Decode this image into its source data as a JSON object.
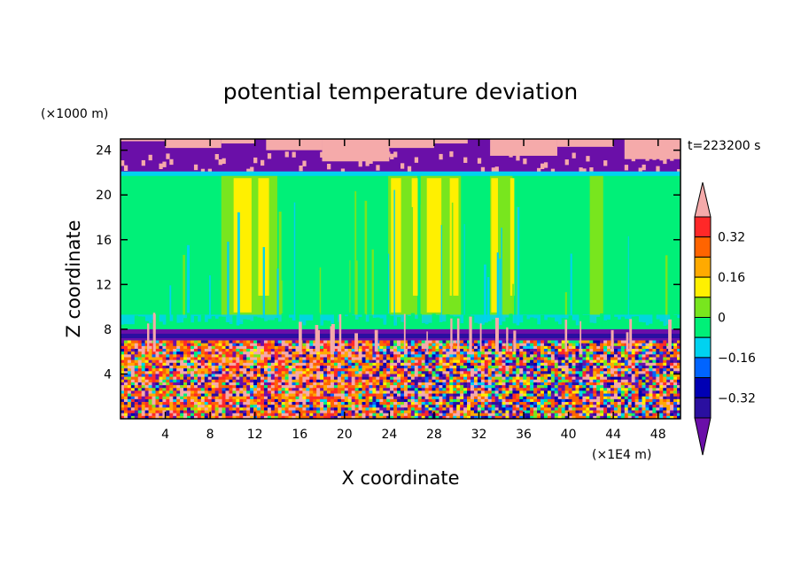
{
  "chart_data": {
    "type": "heatmap",
    "title": "potential temperature deviation",
    "xlabel": "X coordinate",
    "ylabel": "Z coordinate",
    "x_unit": "(×1E4 m)",
    "y_unit": "(×1000 m)",
    "time_label": "t=223200 s",
    "xlim": [
      0,
      50
    ],
    "ylim": [
      0,
      25
    ],
    "x_ticks": [
      "4",
      "8",
      "12",
      "16",
      "20",
      "24",
      "28",
      "32",
      "36",
      "40",
      "44",
      "48"
    ],
    "y_ticks": [
      "4",
      "8",
      "12",
      "16",
      "20",
      "24"
    ],
    "colorbar": {
      "levels": [
        -0.4,
        -0.32,
        -0.24,
        -0.16,
        -0.08,
        0,
        0.08,
        0.16,
        0.24,
        0.32,
        0.4
      ],
      "tick_labels": [
        "0.32",
        "0.16",
        "0",
        "−0.16",
        "−0.32"
      ],
      "colors": [
        "#6a0fa8",
        "#2a0fa0",
        "#0000b4",
        "#0064ff",
        "#00d2f0",
        "#00f078",
        "#78e61e",
        "#fff000",
        "#ffaa00",
        "#ff6400",
        "#ff2828",
        "#f5aaaa"
      ]
    },
    "layers": [
      {
        "z_range": [
          21.8,
          25
        ],
        "value": "strong positive / negative mix (pink, purple)"
      },
      {
        "z_range": [
          8,
          21.8
        ],
        "value": "near 0 to +0.16 (green, yellow bands)"
      },
      {
        "z_range": [
          7,
          8
        ],
        "value": "about -0.4 (purple band)"
      },
      {
        "z_range": [
          0,
          7
        ],
        "value": "turbulent mixed values -0.4 to +0.4"
      }
    ]
  }
}
